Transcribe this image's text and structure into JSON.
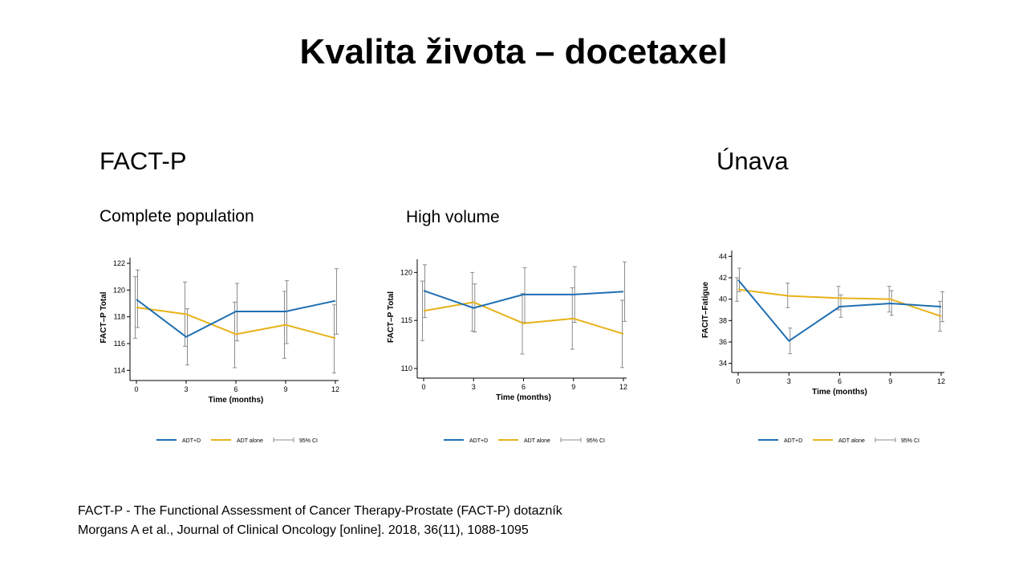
{
  "slide": {
    "title": "Kvalita života – docetaxel",
    "heading_left": "FACT-P",
    "heading_right": "Únava",
    "subheading_1": "Complete population",
    "subheading_2": "High volume"
  },
  "footnotes": [
    "FACT-P - The Functional Assessment of Cancer Therapy-Prostate (FACT-P) dotazník",
    "Morgans A et al., Journal of Clinical Oncology [online]. 2018, 36(11), 1088-1095"
  ],
  "colors": {
    "adt_d": "#1F6FB2",
    "adt_alone": "#E8B21A",
    "ci": "#8c8c8c"
  },
  "chart_data": [
    {
      "type": "line",
      "xlabel": "Time (months)",
      "ylabel": "FACT–P Total",
      "x": [
        0,
        3,
        6,
        9,
        12
      ],
      "xticks": [
        0,
        3,
        6,
        9,
        12
      ],
      "ylim": [
        113.6,
        122.3
      ],
      "yticks": [
        114,
        116,
        118,
        120,
        122
      ],
      "legend": [
        "ADT+D",
        "ADT alone",
        "95% CI"
      ],
      "series": [
        {
          "name": "ADT+D",
          "values": [
            119.3,
            116.5,
            118.4,
            118.4,
            119.2
          ],
          "ci_low": [
            117.2,
            114.4,
            116.2,
            116.0,
            116.7
          ],
          "ci_high": [
            121.5,
            118.6,
            120.5,
            120.7,
            121.6
          ]
        },
        {
          "name": "ADT alone",
          "values": [
            118.7,
            118.2,
            116.7,
            117.4,
            116.4
          ],
          "ci_low": [
            116.4,
            115.8,
            114.2,
            114.9,
            113.8
          ],
          "ci_high": [
            121.0,
            120.6,
            119.1,
            119.9,
            118.9
          ]
        }
      ]
    },
    {
      "type": "line",
      "xlabel": "Time (months)",
      "ylabel": "FACT–P Total",
      "x": [
        0,
        3,
        6,
        9,
        12
      ],
      "xticks": [
        0,
        3,
        6,
        9,
        12
      ],
      "ylim": [
        109.5,
        121.2
      ],
      "yticks": [
        110,
        115,
        120
      ],
      "legend": [
        "ADT+D",
        "ADT alone",
        "95% CI"
      ],
      "series": [
        {
          "name": "ADT+D",
          "values": [
            118.1,
            116.3,
            117.7,
            117.7,
            118.0
          ],
          "ci_low": [
            115.3,
            113.8,
            114.8,
            114.8,
            114.9
          ],
          "ci_high": [
            120.8,
            118.8,
            120.5,
            120.6,
            121.1
          ]
        },
        {
          "name": "ADT alone",
          "values": [
            116.0,
            116.9,
            114.7,
            115.2,
            113.6
          ],
          "ci_low": [
            112.9,
            113.9,
            111.5,
            112.0,
            110.1
          ],
          "ci_high": [
            119.1,
            120.0,
            117.8,
            118.4,
            117.1
          ]
        }
      ]
    },
    {
      "type": "line",
      "xlabel": "Time (months)",
      "ylabel": "FACIT–Fatigue",
      "x": [
        0,
        3,
        6,
        9,
        12
      ],
      "xticks": [
        0,
        3,
        6,
        9,
        12
      ],
      "ylim": [
        33.6,
        44.4
      ],
      "yticks": [
        34,
        36,
        38,
        40,
        42,
        44
      ],
      "legend": [
        "ADT+D",
        "ADT alone",
        "95% CI"
      ],
      "series": [
        {
          "name": "ADT+D",
          "values": [
            41.8,
            36.1,
            39.3,
            39.6,
            39.3
          ],
          "ci_low": [
            40.7,
            34.9,
            38.3,
            38.5,
            37.9
          ],
          "ci_high": [
            42.9,
            37.3,
            40.4,
            40.8,
            40.7
          ]
        },
        {
          "name": "ADT alone",
          "values": [
            40.9,
            40.3,
            40.1,
            40.0,
            38.4
          ],
          "ci_low": [
            39.8,
            39.2,
            39.0,
            38.8,
            37.0
          ],
          "ci_high": [
            42.0,
            41.5,
            41.2,
            41.2,
            39.8
          ]
        }
      ]
    }
  ]
}
